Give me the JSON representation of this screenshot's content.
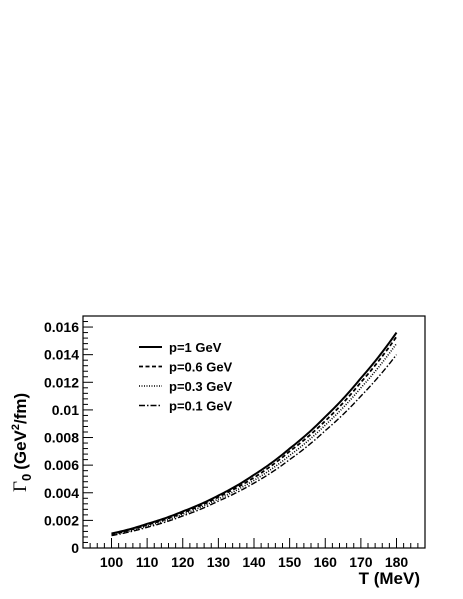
{
  "chart_data": {
    "type": "line",
    "xlabel": "T (MeV)",
    "ylabel": {
      "main": "Γ",
      "sub": "0",
      "pre": "(GeV",
      "sup": "2",
      "post": "/fm)"
    },
    "xlim": [
      92,
      188
    ],
    "ylim": [
      0,
      0.0168
    ],
    "x_ticks": [
      100,
      110,
      120,
      130,
      140,
      150,
      160,
      170,
      180
    ],
    "y_ticks": [
      0,
      0.002,
      0.004,
      0.006,
      0.008,
      0.01,
      0.012,
      0.014,
      0.016
    ],
    "y_tick_labels": [
      "0",
      "0.002",
      "0.004",
      "0.006",
      "0.008",
      "0.01",
      "0.012",
      "0.014",
      "0.016"
    ],
    "legend_position": "top-left",
    "grid": false,
    "x": [
      100,
      110,
      120,
      130,
      140,
      150,
      160,
      170,
      180
    ],
    "series": [
      {
        "name": "p=1 GeV",
        "style": "solid",
        "values": [
          0.00105,
          0.00175,
          0.00265,
          0.0038,
          0.0053,
          0.0072,
          0.0095,
          0.0123,
          0.0156
        ]
      },
      {
        "name": "p=0.6 GeV",
        "style": "dashed",
        "values": [
          0.001,
          0.00168,
          0.00255,
          0.0037,
          0.0051,
          0.007,
          0.0092,
          0.012,
          0.0153
        ]
      },
      {
        "name": "p=0.3 GeV",
        "style": "dotted",
        "values": [
          0.00095,
          0.0016,
          0.00245,
          0.00355,
          0.0049,
          0.0067,
          0.0089,
          0.0116,
          0.0148
        ]
      },
      {
        "name": "p=0.1 GeV",
        "style": "dash-dot",
        "values": [
          0.0009,
          0.0015,
          0.00232,
          0.0034,
          0.0047,
          0.0064,
          0.0085,
          0.011,
          0.014
        ]
      }
    ]
  }
}
